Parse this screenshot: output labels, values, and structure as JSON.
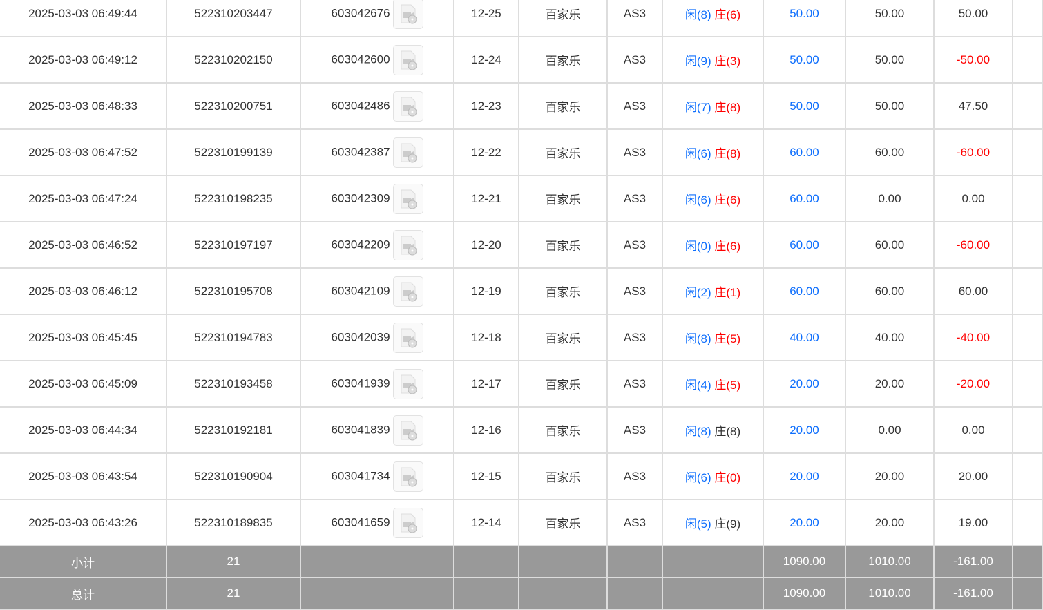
{
  "colors": {
    "blue": "#0d6efd",
    "red": "#ff0000",
    "footer_bg": "#999999"
  },
  "rows": [
    {
      "time": "2025-03-03 06:49:44",
      "order": "522310203447",
      "round": "603042676",
      "shoe": "12-25",
      "game": "百家乐",
      "table": "AS3",
      "player": "闲(8)",
      "banker": "庄(6)",
      "bet": "50.00",
      "valid": "50.00",
      "win": "50.00"
    },
    {
      "time": "2025-03-03 06:49:12",
      "order": "522310202150",
      "round": "603042600",
      "shoe": "12-24",
      "game": "百家乐",
      "table": "AS3",
      "player": "闲(9)",
      "banker": "庄(3)",
      "bet": "50.00",
      "valid": "50.00",
      "win": "-50.00"
    },
    {
      "time": "2025-03-03 06:48:33",
      "order": "522310200751",
      "round": "603042486",
      "shoe": "12-23",
      "game": "百家乐",
      "table": "AS3",
      "player": "闲(7)",
      "banker": "庄(8)",
      "bet": "50.00",
      "valid": "50.00",
      "win": "47.50"
    },
    {
      "time": "2025-03-03 06:47:52",
      "order": "522310199139",
      "round": "603042387",
      "shoe": "12-22",
      "game": "百家乐",
      "table": "AS3",
      "player": "闲(6)",
      "banker": "庄(8)",
      "bet": "60.00",
      "valid": "60.00",
      "win": "-60.00"
    },
    {
      "time": "2025-03-03 06:47:24",
      "order": "522310198235",
      "round": "603042309",
      "shoe": "12-21",
      "game": "百家乐",
      "table": "AS3",
      "player": "闲(6)",
      "banker": "庄(6)",
      "bet": "60.00",
      "valid": "0.00",
      "win": "0.00"
    },
    {
      "time": "2025-03-03 06:46:52",
      "order": "522310197197",
      "round": "603042209",
      "shoe": "12-20",
      "game": "百家乐",
      "table": "AS3",
      "player": "闲(0)",
      "banker": "庄(6)",
      "bet": "60.00",
      "valid": "60.00",
      "win": "-60.00"
    },
    {
      "time": "2025-03-03 06:46:12",
      "order": "522310195708",
      "round": "603042109",
      "shoe": "12-19",
      "game": "百家乐",
      "table": "AS3",
      "player": "闲(2)",
      "banker": "庄(1)",
      "bet": "60.00",
      "valid": "60.00",
      "win": "60.00"
    },
    {
      "time": "2025-03-03 06:45:45",
      "order": "522310194783",
      "round": "603042039",
      "shoe": "12-18",
      "game": "百家乐",
      "table": "AS3",
      "player": "闲(8)",
      "banker": "庄(5)",
      "bet": "40.00",
      "valid": "40.00",
      "win": "-40.00"
    },
    {
      "time": "2025-03-03 06:45:09",
      "order": "522310193458",
      "round": "603041939",
      "shoe": "12-17",
      "game": "百家乐",
      "table": "AS3",
      "player": "闲(4)",
      "banker": "庄(5)",
      "bet": "20.00",
      "valid": "20.00",
      "win": "-20.00"
    },
    {
      "time": "2025-03-03 06:44:34",
      "order": "522310192181",
      "round": "603041839",
      "shoe": "12-16",
      "game": "百家乐",
      "table": "AS3",
      "player": "闲(8)",
      "banker": "庄(8)",
      "bet": "20.00",
      "valid": "0.00",
      "win": "0.00"
    },
    {
      "time": "2025-03-03 06:43:54",
      "order": "522310190904",
      "round": "603041734",
      "shoe": "12-15",
      "game": "百家乐",
      "table": "AS3",
      "player": "闲(6)",
      "banker": "庄(0)",
      "bet": "20.00",
      "valid": "20.00",
      "win": "20.00"
    },
    {
      "time": "2025-03-03 06:43:26",
      "order": "522310189835",
      "round": "603041659",
      "shoe": "12-14",
      "game": "百家乐",
      "table": "AS3",
      "player": "闲(5)",
      "banker": "庄(9)",
      "bet": "20.00",
      "valid": "20.00",
      "win": "19.00"
    }
  ],
  "red_banker": [
    true,
    true,
    true,
    true,
    true,
    true,
    true,
    true,
    true,
    false,
    true,
    false
  ],
  "footer": [
    {
      "label": "小计",
      "count": "21",
      "bet": "1090.00",
      "valid": "1010.00",
      "win": "-161.00"
    },
    {
      "label": "总计",
      "count": "21",
      "bet": "1090.00",
      "valid": "1010.00",
      "win": "-161.00"
    }
  ]
}
